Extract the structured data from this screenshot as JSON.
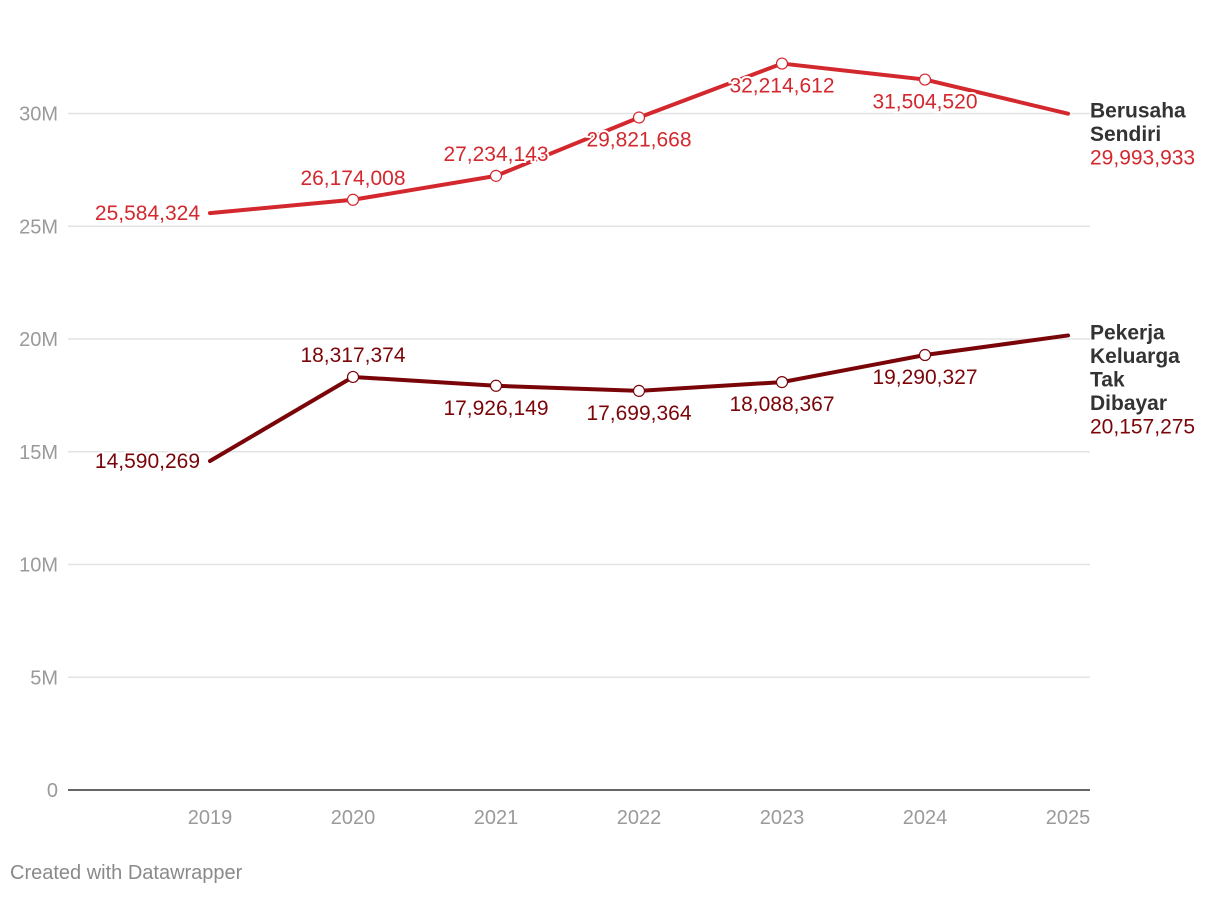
{
  "chart_data": {
    "type": "line",
    "x": [
      "2019",
      "2020",
      "2021",
      "2022",
      "2023",
      "2024",
      "2025"
    ],
    "ylim": [
      0,
      33000000
    ],
    "y_ticks": [
      {
        "value": 0,
        "label": "0"
      },
      {
        "value": 5000000,
        "label": "5M"
      },
      {
        "value": 10000000,
        "label": "10M"
      },
      {
        "value": 15000000,
        "label": "15M"
      },
      {
        "value": 20000000,
        "label": "20M"
      },
      {
        "value": 25000000,
        "label": "25M"
      },
      {
        "value": 30000000,
        "label": "30M"
      }
    ],
    "grid": true,
    "series": [
      {
        "name": "Berusaha Sendiri",
        "name_lines": [
          "Berusaha",
          "Sendiri"
        ],
        "color": "#d3282e",
        "values": [
          25584324,
          26174008,
          27234143,
          29821668,
          32214612,
          31504520,
          29993933
        ],
        "labels": [
          "25,584,324",
          "26,174,008",
          "27,234,143",
          "29,821,668",
          "32,214,612",
          "31,504,520",
          "29,993,933"
        ]
      },
      {
        "name": "Pekerja Keluarga Tak Dibayar",
        "name_lines": [
          "Pekerja",
          "Keluarga",
          "Tak",
          "Dibayar"
        ],
        "color": "#7a0509",
        "values": [
          14590269,
          18317374,
          17926149,
          17699364,
          18088367,
          19290327,
          20157275
        ],
        "labels": [
          "14,590,269",
          "18,317,374",
          "17,926,149",
          "17,699,364",
          "18,088,367",
          "19,290,327",
          "20,157,275"
        ]
      }
    ]
  },
  "footer": {
    "credit": "Created with Datawrapper"
  },
  "colors": {
    "grid": "#e3e3e3",
    "axis": "#333333",
    "tick_label": "#9a9a9a",
    "series_name": "#333333"
  }
}
